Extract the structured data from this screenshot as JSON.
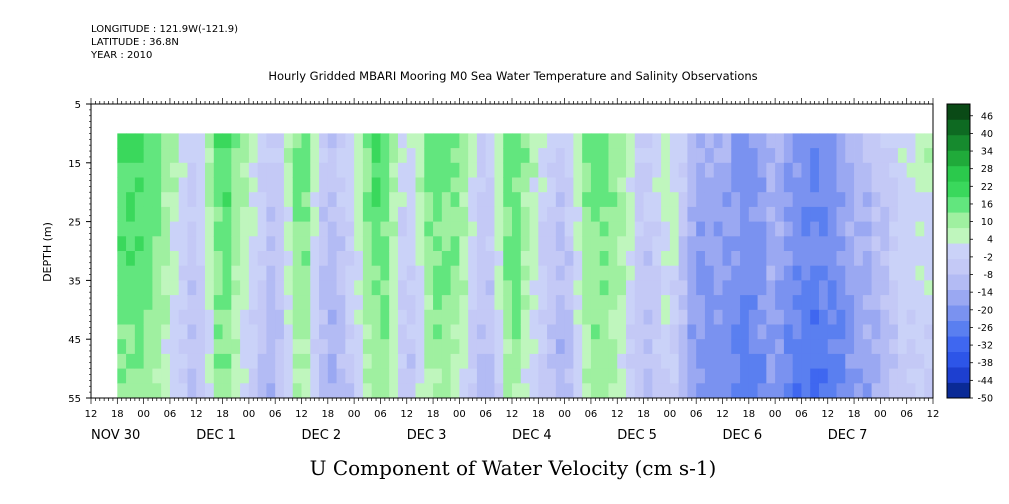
{
  "header": {
    "longitude": "LONGITUDE : 121.9W(-121.9)",
    "latitude": "LATITUDE : 36.8N",
    "year": "YEAR : 2010"
  },
  "chart_data": {
    "type": "heatmap",
    "title": "Hourly Gridded MBARI Mooring M0 Sea Water Temperature and Salinity Observations",
    "xlabel": "U Component of Water Velocity (cm s-1)",
    "ylabel": "DEPTH (m)",
    "ylim": [
      5,
      55
    ],
    "y_reversed": true,
    "y_ticks": [
      5,
      15,
      25,
      35,
      45,
      55
    ],
    "x_hour_ticks": [
      "12",
      "18",
      "00",
      "06",
      "12",
      "18",
      "00",
      "06",
      "12",
      "18",
      "00",
      "06",
      "12",
      "18",
      "00",
      "06",
      "12",
      "18",
      "00",
      "06",
      "12",
      "18",
      "00",
      "06",
      "12",
      "18",
      "00",
      "06",
      "12",
      "18",
      "00",
      "06",
      "12"
    ],
    "x_day_labels": [
      {
        "label": "NOV 30",
        "hour": 0
      },
      {
        "label": "DEC  1",
        "hour": 24
      },
      {
        "label": "DEC  2",
        "hour": 48
      },
      {
        "label": "DEC  3",
        "hour": 72
      },
      {
        "label": "DEC  4",
        "hour": 96
      },
      {
        "label": "DEC  5",
        "hour": 120
      },
      {
        "label": "DEC  6",
        "hour": 144
      },
      {
        "label": "DEC  7",
        "hour": 168
      }
    ],
    "x_range_hours_from_nov30_12": [
      0,
      192
    ],
    "data_extent": {
      "hour_start": 6,
      "hour_end": 192,
      "depth_top": 10,
      "depth_bottom": 55
    },
    "colorbar": {
      "min": -50,
      "max": 50,
      "step": 6,
      "tick_labels": [
        "46",
        "40",
        "34",
        "28",
        "22",
        "16",
        "10",
        "4",
        "-2",
        "-8",
        "-14",
        "-20",
        "-26",
        "-32",
        "-38",
        "-44",
        "-50"
      ],
      "colors": [
        "#0a2a96",
        "#1d3fd0",
        "#2d55e8",
        "#3f67f0",
        "#5a7ff0",
        "#7a92f0",
        "#9aa8f2",
        "#b3bbf4",
        "#c4c9f6",
        "#cad2f8",
        "#bff6bd",
        "#9ff0a0",
        "#62e67e",
        "#3ad85c",
        "#2bc94c",
        "#20aa3a",
        "#168a2e",
        "#0e6a22",
        "#0a4a16"
      ]
    },
    "description_bands": [
      {
        "hour": 12,
        "value": 20
      },
      {
        "hour": 18,
        "value": 10
      },
      {
        "hour": 24,
        "value": -4
      },
      {
        "hour": 30,
        "value": 22
      },
      {
        "hour": 36,
        "value": 6
      },
      {
        "hour": 42,
        "value": -6
      },
      {
        "hour": 48,
        "value": 20
      },
      {
        "hour": 54,
        "value": -8
      },
      {
        "hour": 60,
        "value": 4
      },
      {
        "hour": 66,
        "value": 22
      },
      {
        "hour": 72,
        "value": -2
      },
      {
        "hour": 78,
        "value": 18
      },
      {
        "hour": 84,
        "value": 14
      },
      {
        "hour": 90,
        "value": -6
      },
      {
        "hour": 96,
        "value": 20
      },
      {
        "hour": 102,
        "value": 4
      },
      {
        "hour": 108,
        "value": -6
      },
      {
        "hour": 114,
        "value": 18
      },
      {
        "hour": 120,
        "value": 14
      },
      {
        "hour": 126,
        "value": -4
      },
      {
        "hour": 132,
        "value": 8
      },
      {
        "hour": 138,
        "value": -14
      },
      {
        "hour": 144,
        "value": -14
      },
      {
        "hour": 150,
        "value": -20
      },
      {
        "hour": 156,
        "value": -10
      },
      {
        "hour": 162,
        "value": -22
      },
      {
        "hour": 168,
        "value": -20
      },
      {
        "hour": 174,
        "value": -12
      },
      {
        "hour": 180,
        "value": -6
      },
      {
        "hour": 186,
        "value": 4
      },
      {
        "hour": 192,
        "value": 6
      }
    ]
  }
}
